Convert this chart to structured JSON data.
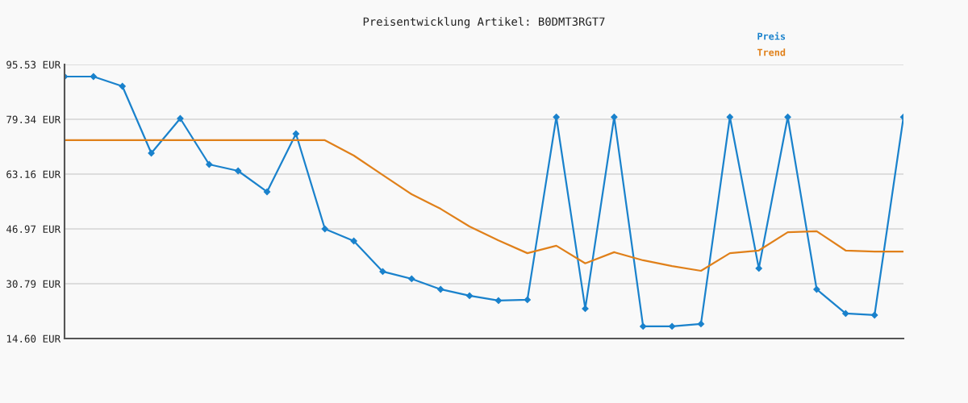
{
  "chart_data": {
    "type": "line",
    "title": "Preisentwicklung Artikel: B0DMT3RGT7",
    "categories": [
      null,
      null,
      null,
      null,
      null,
      null,
      null,
      null,
      null,
      null,
      null,
      null,
      null,
      null,
      null,
      null,
      null,
      null,
      null,
      null,
      null,
      null,
      null,
      null,
      null,
      null,
      null,
      null,
      null,
      null
    ],
    "series": [
      {
        "name": "Preis",
        "color": "#1a82cc",
        "marker": "diamond",
        "values": [
          91.96,
          91.96,
          89.1,
          69.35,
          79.58,
          66.02,
          64.11,
          57.93,
          75.06,
          46.98,
          43.41,
          34.37,
          32.23,
          29.13,
          27.23,
          25.8,
          26.04,
          80.0,
          23.42,
          80.0,
          18.19,
          18.19,
          18.9,
          80.0,
          35.32,
          80.0,
          29.13,
          21.99,
          21.51,
          80.0
        ]
      },
      {
        "name": "Trend",
        "color": "#e0801a",
        "marker": "none",
        "values": [
          73.16,
          73.16,
          73.16,
          73.16,
          73.16,
          73.16,
          73.16,
          73.16,
          73.16,
          73.16,
          68.64,
          62.9,
          57.2,
          52.9,
          47.7,
          43.6,
          39.8,
          42.0,
          36.8,
          40.1,
          37.7,
          36.0,
          34.6,
          39.8,
          40.6,
          46.0,
          46.3,
          40.6,
          40.3,
          40.3
        ]
      }
    ],
    "ylim": [
      14.6,
      95.53
    ],
    "yticks": [
      {
        "value": 14.6,
        "label": "14.60 EUR"
      },
      {
        "value": 30.79,
        "label": "30.79 EUR"
      },
      {
        "value": 46.97,
        "label": "46.97 EUR"
      },
      {
        "value": 63.16,
        "label": "63.16 EUR"
      },
      {
        "value": 79.34,
        "label": "79.34 EUR"
      },
      {
        "value": 95.53,
        "label": "95.53 EUR"
      }
    ],
    "grid": "y",
    "legend": "top right",
    "line_style": "solid"
  }
}
